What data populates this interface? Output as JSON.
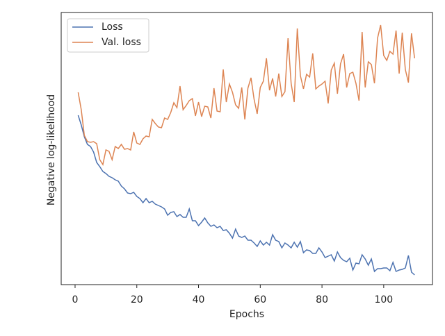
{
  "chart_data": {
    "type": "line",
    "x_label": "Epochs",
    "y_label": "Negative log-likelihood",
    "x": [
      1,
      2,
      3,
      4,
      5,
      6,
      7,
      8,
      9,
      10,
      11,
      12,
      13,
      14,
      15,
      16,
      17,
      18,
      19,
      20,
      21,
      22,
      23,
      24,
      25,
      26,
      27,
      28,
      29,
      30,
      31,
      32,
      33,
      34,
      35,
      36,
      37,
      38,
      39,
      40,
      41,
      42,
      43,
      44,
      45,
      46,
      47,
      48,
      49,
      50,
      51,
      52,
      53,
      54,
      55,
      56,
      57,
      58,
      59,
      60,
      61,
      62,
      63,
      64,
      65,
      66,
      67,
      68,
      69,
      70,
      71,
      72,
      73,
      74,
      75,
      76,
      77,
      78,
      79,
      80,
      81,
      82,
      83,
      84,
      85,
      86,
      87,
      88,
      89,
      90,
      91,
      92,
      93,
      94,
      95,
      96,
      97,
      98,
      99,
      100,
      101,
      102,
      103,
      104,
      105,
      106,
      107,
      108,
      109,
      110
    ],
    "series": [
      {
        "name": "Loss",
        "color": "#4c72b0",
        "values": [
          244,
          230,
          213,
          202,
          199,
          191,
          176,
          170,
          163,
          160,
          156,
          154,
          151,
          149,
          142,
          138,
          132,
          131,
          133,
          127,
          124,
          118,
          124,
          118,
          120,
          116,
          114,
          112,
          109,
          100,
          104,
          105,
          98,
          101,
          97,
          97,
          109,
          92,
          92,
          85,
          90,
          96,
          89,
          84,
          86,
          82,
          84,
          78,
          79,
          74,
          67,
          80,
          70,
          68,
          70,
          64,
          64,
          60,
          55,
          63,
          57,
          61,
          57,
          72,
          64,
          62,
          53,
          60,
          57,
          53,
          61,
          54,
          62,
          46,
          50,
          49,
          45,
          45,
          53,
          47,
          39,
          41,
          43,
          34,
          47,
          39,
          35,
          33,
          38,
          21,
          31,
          30,
          43,
          37,
          28,
          37,
          19,
          23,
          23,
          24,
          24,
          20,
          32,
          19,
          21,
          22,
          24,
          42,
          18,
          14
        ]
      },
      {
        "name": "Val. loss",
        "color": "#dd8452",
        "values": [
          277,
          252,
          215,
          206,
          205,
          206,
          203,
          180,
          173,
          194,
          192,
          180,
          199,
          196,
          202,
          195,
          196,
          194,
          220,
          204,
          202,
          210,
          214,
          213,
          238,
          232,
          227,
          226,
          240,
          238,
          248,
          262,
          255,
          286,
          252,
          258,
          265,
          268,
          243,
          263,
          242,
          257,
          256,
          240,
          283,
          250,
          249,
          310,
          263,
          289,
          277,
          259,
          254,
          284,
          238,
          283,
          298,
          267,
          246,
          284,
          293,
          326,
          280,
          297,
          271,
          304,
          271,
          278,
          355,
          290,
          263,
          369,
          301,
          282,
          303,
          299,
          333,
          282,
          286,
          289,
          293,
          261,
          309,
          319,
          275,
          318,
          332,
          284,
          304,
          306,
          290,
          265,
          364,
          284,
          321,
          317,
          290,
          355,
          374,
          330,
          323,
          336,
          332,
          366,
          304,
          363,
          310,
          291,
          362,
          326
        ]
      }
    ],
    "xlim": [
      -4.5,
      115.8
    ],
    "xticks": [
      0,
      20,
      40,
      60,
      80,
      100
    ],
    "ylim": [
      0,
      392
    ],
    "legend": "upper left"
  }
}
